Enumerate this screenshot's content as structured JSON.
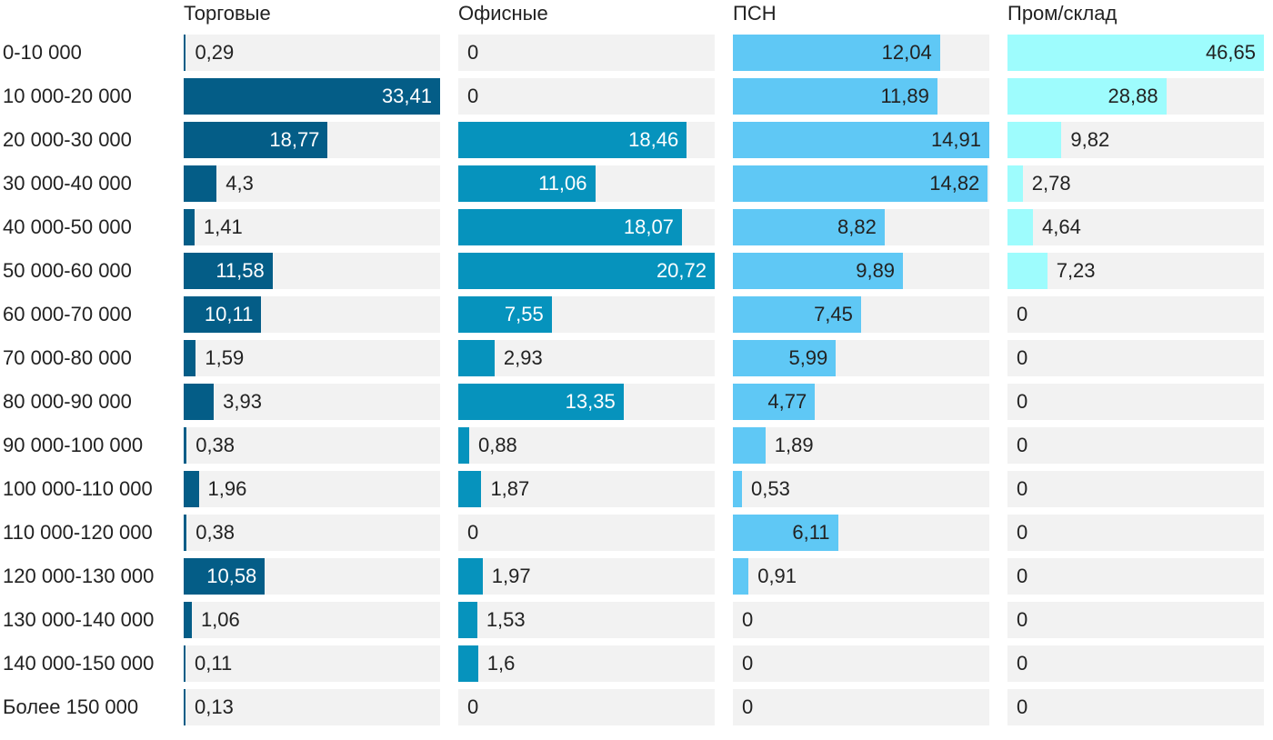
{
  "chart_data": {
    "type": "bar",
    "orientation": "horizontal",
    "layout": "small-multiples",
    "categories": [
      "0-10 000",
      "10 000-20 000",
      "20 000-30 000",
      "30 000-40 000",
      "40 000-50 000",
      "50 000-60 000",
      "60 000-70 000",
      "70 000-80 000",
      "80 000-90 000",
      "90 000-100 000",
      "100 000-110 000",
      "110 000-120 000",
      "120 000-130 000",
      "130 000-140 000",
      "140 000-150 000",
      "Более 150 000"
    ],
    "series": [
      {
        "name": "Торговые",
        "color": "#045d87",
        "label_inside_color": "#ffffff",
        "max": 33.41,
        "values": [
          0.29,
          33.41,
          18.77,
          4.3,
          1.41,
          11.58,
          10.11,
          1.59,
          3.93,
          0.38,
          1.96,
          0.38,
          10.58,
          1.06,
          0.11,
          0.13
        ],
        "labels": [
          "0,29",
          "33,41",
          "18,77",
          "4,3",
          "1,41",
          "11,58",
          "10,11",
          "1,59",
          "3,93",
          "0,38",
          "1,96",
          "0,38",
          "10,58",
          "1,06",
          "0,11",
          "0,13"
        ]
      },
      {
        "name": "Офисные",
        "color": "#0693bd",
        "label_inside_color": "#ffffff",
        "max": 20.72,
        "values": [
          0,
          0,
          18.46,
          11.06,
          18.07,
          20.72,
          7.55,
          2.93,
          13.35,
          0.88,
          1.87,
          0,
          1.97,
          1.53,
          1.6,
          0
        ],
        "labels": [
          "0",
          "0",
          "18,46",
          "11,06",
          "18,07",
          "20,72",
          "7,55",
          "2,93",
          "13,35",
          "0,88",
          "1,87",
          "0",
          "1,97",
          "1,53",
          "1,6",
          "0"
        ]
      },
      {
        "name": "ПСН",
        "color": "#5fc8f5",
        "label_inside_color": "#222222",
        "max": 14.91,
        "values": [
          12.04,
          11.89,
          14.91,
          14.82,
          8.82,
          9.89,
          7.45,
          5.99,
          4.77,
          1.89,
          0.53,
          6.11,
          0.91,
          0,
          0,
          0
        ],
        "labels": [
          "12,04",
          "11,89",
          "14,91",
          "14,82",
          "8,82",
          "9,89",
          "7,45",
          "5,99",
          "4,77",
          "1,89",
          "0,53",
          "6,11",
          "0,91",
          "0",
          "0",
          "0"
        ]
      },
      {
        "name": "Пром/склад",
        "color": "#9efcfd",
        "label_inside_color": "#222222",
        "max": 46.65,
        "values": [
          46.65,
          28.88,
          9.82,
          2.78,
          4.64,
          7.23,
          0,
          0,
          0,
          0,
          0,
          0,
          0,
          0,
          0,
          0
        ],
        "labels": [
          "46,65",
          "28,88",
          "9,82",
          "2,78",
          "4,64",
          "7,23",
          "0",
          "0",
          "0",
          "0",
          "0",
          "0",
          "0",
          "0",
          "0",
          "0"
        ]
      }
    ],
    "title": "",
    "xlabel": "",
    "ylabel": "",
    "grid": false,
    "legend": "panel-titles-top"
  }
}
